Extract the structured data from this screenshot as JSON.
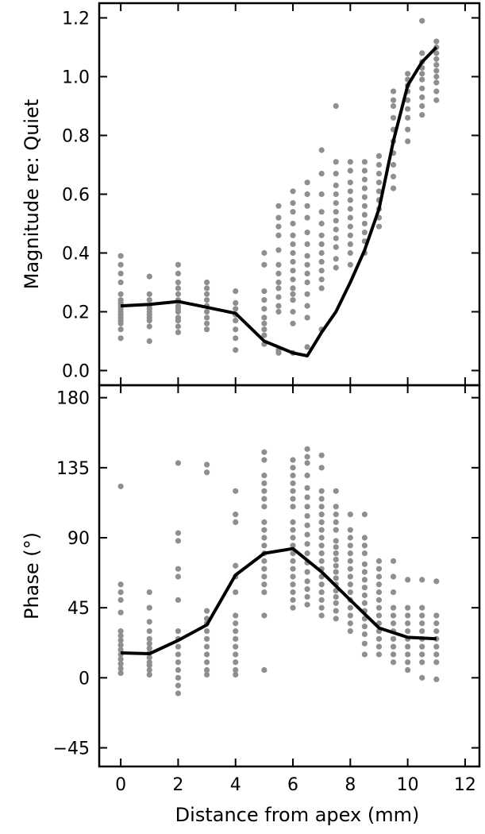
{
  "chart_data": {
    "type": "scatter",
    "xlabel": "Distance from apex (mm)",
    "xlim": [
      -0.75,
      12.5
    ],
    "xticks": [
      0,
      2,
      4,
      6,
      8,
      10,
      12
    ],
    "panels": [
      {
        "id": "magnitude",
        "ylabel": "Magnitude re: Quiet",
        "ylim": [
          -0.05,
          1.25
        ],
        "yticks": [
          0.0,
          0.2,
          0.4,
          0.6,
          0.8,
          1.0,
          1.2
        ],
        "ytick_labels": [
          "0.0",
          "0.2",
          "0.4",
          "0.6",
          "0.8",
          "1.0",
          "1.2"
        ],
        "scatter": [
          {
            "x": 0,
            "y": [
              0.11,
              0.14,
              0.16,
              0.17,
              0.18,
              0.19,
              0.2,
              0.21,
              0.22,
              0.23,
              0.24,
              0.26,
              0.3,
              0.33,
              0.36,
              0.39
            ]
          },
          {
            "x": 1,
            "y": [
              0.1,
              0.15,
              0.17,
              0.18,
              0.19,
              0.2,
              0.21,
              0.22,
              0.24,
              0.26,
              0.32
            ]
          },
          {
            "x": 2,
            "y": [
              0.13,
              0.15,
              0.17,
              0.18,
              0.2,
              0.21,
              0.22,
              0.24,
              0.26,
              0.28,
              0.3,
              0.33,
              0.36
            ]
          },
          {
            "x": 3,
            "y": [
              0.14,
              0.16,
              0.18,
              0.2,
              0.22,
              0.24,
              0.26,
              0.28,
              0.3
            ]
          },
          {
            "x": 4,
            "y": [
              0.07,
              0.11,
              0.14,
              0.17,
              0.19,
              0.21,
              0.23,
              0.27
            ]
          },
          {
            "x": 5,
            "y": [
              0.09,
              0.12,
              0.14,
              0.16,
              0.18,
              0.21,
              0.24,
              0.27,
              0.36,
              0.4
            ]
          },
          {
            "x": 5.5,
            "y": [
              0.06,
              0.07,
              0.2,
              0.22,
              0.25,
              0.28,
              0.3,
              0.33,
              0.36,
              0.41,
              0.46,
              0.49,
              0.52,
              0.56
            ]
          },
          {
            "x": 6,
            "y": [
              0.06,
              0.16,
              0.2,
              0.24,
              0.26,
              0.28,
              0.31,
              0.34,
              0.37,
              0.4,
              0.43,
              0.46,
              0.5,
              0.54,
              0.57,
              0.61
            ]
          },
          {
            "x": 6.5,
            "y": [
              0.08,
              0.18,
              0.22,
              0.26,
              0.3,
              0.33,
              0.36,
              0.39,
              0.43,
              0.47,
              0.52,
              0.56,
              0.6,
              0.64
            ]
          },
          {
            "x": 7,
            "y": [
              0.14,
              0.28,
              0.31,
              0.34,
              0.37,
              0.4,
              0.43,
              0.46,
              0.5,
              0.54,
              0.6,
              0.67,
              0.75
            ]
          },
          {
            "x": 7.5,
            "y": [
              0.35,
              0.38,
              0.42,
              0.45,
              0.48,
              0.51,
              0.54,
              0.57,
              0.6,
              0.63,
              0.67,
              0.71,
              0.9
            ]
          },
          {
            "x": 8,
            "y": [
              0.36,
              0.4,
              0.43,
              0.46,
              0.49,
              0.52,
              0.55,
              0.58,
              0.61,
              0.64,
              0.68,
              0.71
            ]
          },
          {
            "x": 8.5,
            "y": [
              0.4,
              0.44,
              0.47,
              0.5,
              0.53,
              0.56,
              0.59,
              0.62,
              0.65,
              0.68,
              0.71
            ]
          },
          {
            "x": 9,
            "y": [
              0.49,
              0.52,
              0.55,
              0.58,
              0.61,
              0.64,
              0.67,
              0.7,
              0.73
            ]
          },
          {
            "x": 9.5,
            "y": [
              0.62,
              0.66,
              0.7,
              0.74,
              0.78,
              0.82,
              0.86,
              0.9,
              0.92,
              0.95
            ]
          },
          {
            "x": 10,
            "y": [
              0.78,
              0.82,
              0.86,
              0.89,
              0.92,
              0.95,
              0.97,
              0.99,
              1.01
            ]
          },
          {
            "x": 10.5,
            "y": [
              0.87,
              0.9,
              0.93,
              0.96,
              0.99,
              1.01,
              1.03,
              1.05,
              1.08,
              1.19
            ]
          },
          {
            "x": 11,
            "y": [
              0.92,
              0.95,
              0.98,
              1.0,
              1.02,
              1.04,
              1.06,
              1.08,
              1.1,
              1.12
            ]
          }
        ],
        "line": {
          "x": [
            0,
            1,
            2,
            3,
            4,
            5,
            6,
            6.5,
            7,
            7.5,
            8,
            8.5,
            9,
            9.5,
            10,
            10.5,
            11
          ],
          "y": [
            0.22,
            0.225,
            0.235,
            0.215,
            0.195,
            0.1,
            0.06,
            0.05,
            0.13,
            0.2,
            0.3,
            0.41,
            0.55,
            0.78,
            0.97,
            1.05,
            1.1
          ]
        }
      },
      {
        "id": "phase",
        "ylabel": "Phase (°)",
        "ylim": [
          -57,
          188
        ],
        "yticks": [
          -45,
          0,
          45,
          90,
          135,
          180
        ],
        "ytick_labels": [
          "−45",
          "0",
          "45",
          "90",
          "135",
          "180"
        ],
        "scatter": [
          {
            "x": 0,
            "y": [
              3,
              6,
              9,
              12,
              15,
              18,
              21,
              24,
              27,
              30,
              42,
              50,
              55,
              60,
              123
            ]
          },
          {
            "x": 1,
            "y": [
              2,
              5,
              8,
              10,
              13,
              16,
              19,
              22,
              25,
              30,
              36,
              45,
              55
            ]
          },
          {
            "x": 2,
            "y": [
              -10,
              -5,
              0,
              5,
              10,
              15,
              20,
              25,
              30,
              50,
              65,
              70,
              88,
              93,
              138
            ]
          },
          {
            "x": 3,
            "y": [
              2,
              5,
              10,
              15,
              20,
              25,
              30,
              35,
              38,
              43,
              132,
              137
            ]
          },
          {
            "x": 4,
            "y": [
              2,
              5,
              10,
              15,
              20,
              25,
              30,
              35,
              40,
              55,
              65,
              72,
              100,
              105,
              120
            ]
          },
          {
            "x": 5,
            "y": [
              5,
              40,
              55,
              60,
              65,
              70,
              75,
              80,
              85,
              90,
              95,
              100,
              110,
              115,
              120,
              125,
              130,
              140,
              145
            ]
          },
          {
            "x": 6,
            "y": [
              45,
              50,
              55,
              60,
              65,
              70,
              75,
              80,
              85,
              90,
              95,
              100,
              110,
              115,
              120,
              125,
              130,
              135,
              140
            ]
          },
          {
            "x": 6.5,
            "y": [
              47,
              52,
              57,
              62,
              68,
              74,
              80,
              86,
              92,
              98,
              104,
              110,
              116,
              122,
              130,
              138,
              142,
              147
            ]
          },
          {
            "x": 7,
            "y": [
              40,
              45,
              50,
              55,
              60,
              65,
              70,
              75,
              80,
              85,
              90,
              95,
              100,
              105,
              110,
              115,
              120,
              135,
              143
            ]
          },
          {
            "x": 7.5,
            "y": [
              38,
              43,
              48,
              52,
              56,
              60,
              64,
              68,
              72,
              76,
              80,
              84,
              88,
              95,
              100,
              105,
              110,
              120
            ]
          },
          {
            "x": 8,
            "y": [
              30,
              35,
              40,
              45,
              50,
              55,
              60,
              65,
              70,
              75,
              80,
              85,
              90,
              95,
              105
            ]
          },
          {
            "x": 8.5,
            "y": [
              15,
              22,
              28,
              33,
              38,
              43,
              48,
              53,
              58,
              63,
              68,
              73,
              80,
              85,
              90,
              105
            ]
          },
          {
            "x": 9,
            "y": [
              15,
              20,
              25,
              30,
              35,
              40,
              45,
              50,
              55,
              60,
              65,
              70,
              75
            ]
          },
          {
            "x": 9.5,
            "y": [
              10,
              15,
              20,
              25,
              30,
              35,
              40,
              45,
              55,
              65,
              75
            ]
          },
          {
            "x": 10,
            "y": [
              5,
              10,
              15,
              20,
              25,
              30,
              35,
              40,
              45,
              63
            ]
          },
          {
            "x": 10.5,
            "y": [
              0,
              10,
              15,
              20,
              25,
              30,
              35,
              40,
              45,
              63
            ]
          },
          {
            "x": 11,
            "y": [
              -1,
              10,
              15,
              20,
              25,
              30,
              35,
              40,
              62
            ]
          }
        ],
        "line": {
          "x": [
            0,
            1,
            2,
            3,
            4,
            5,
            6,
            7,
            8,
            9,
            10,
            11
          ],
          "y": [
            16,
            15.5,
            24,
            34,
            66,
            80,
            83,
            68,
            50,
            32,
            26,
            25
          ]
        }
      }
    ]
  }
}
